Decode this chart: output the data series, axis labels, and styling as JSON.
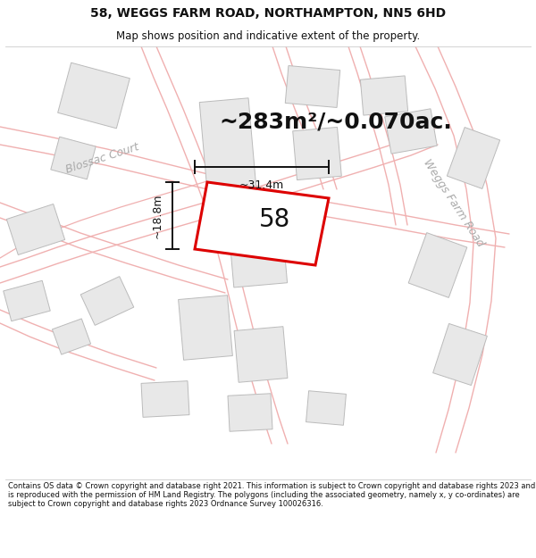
{
  "title_line1": "58, WEGGS FARM ROAD, NORTHAMPTON, NN5 6HD",
  "title_line2": "Map shows position and indicative extent of the property.",
  "area_text": "~283m²/~0.070ac.",
  "dim_width": "~31.4m",
  "dim_height": "~18.8m",
  "property_number": "58",
  "footer_text": "Contains OS data © Crown copyright and database right 2021. This information is subject to Crown copyright and database rights 2023 and is reproduced with the permission of HM Land Registry. The polygons (including the associated geometry, namely x, y co-ordinates) are subject to Crown copyright and database rights 2023 Ordnance Survey 100026316.",
  "map_bg": "#ffffff",
  "road_color": "#f0b0b0",
  "building_fill": "#e8e8e8",
  "building_stroke": "#bbbbbb",
  "property_outline_color": "#dd0000",
  "dim_color": "#111111",
  "text_color": "#111111",
  "road_label_color": "#aaaaaa",
  "road_label_weggs": "Weggs Farm Road",
  "road_label_blossac": "Blossac Court",
  "title_fontsize": 10,
  "subtitle_fontsize": 8.5,
  "area_fontsize": 18,
  "number_fontsize": 20,
  "dim_fontsize": 9,
  "road_label_fontsize": 9
}
